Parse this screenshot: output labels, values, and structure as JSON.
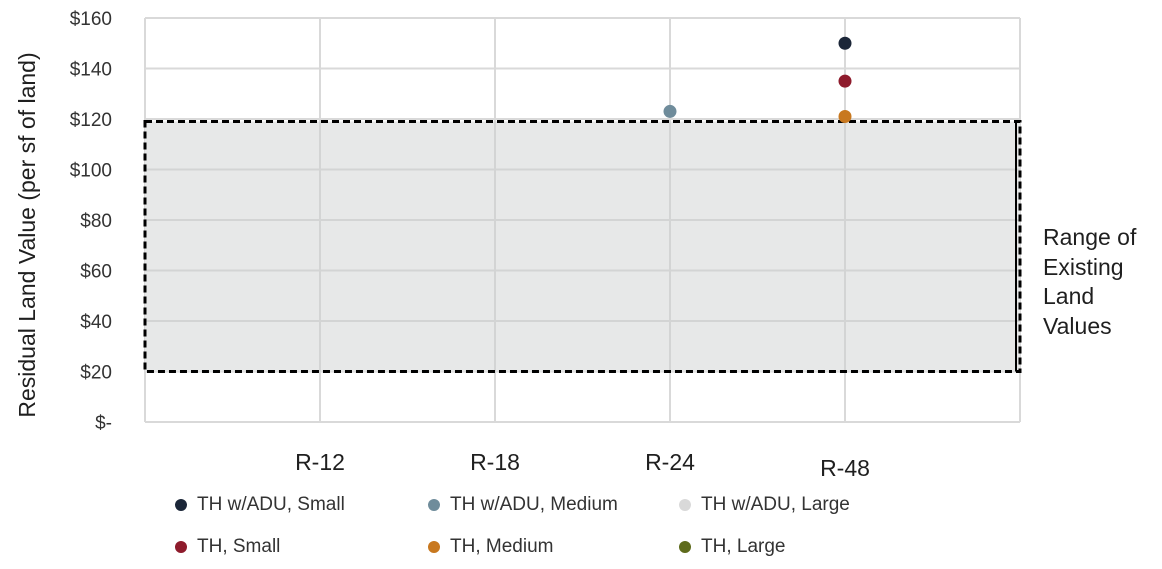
{
  "chart_data": {
    "type": "scatter",
    "title": "",
    "xlabel": "",
    "ylabel": "Residual Land Value (per sf of land)",
    "categories": [
      "R-12",
      "R-18",
      "R-24",
      "R-48"
    ],
    "y_ticks": [
      "$-",
      "$20",
      "$40",
      "$60",
      "$80",
      "$100",
      "$120",
      "$140",
      "$160"
    ],
    "ylim": [
      0,
      160
    ],
    "grid": true,
    "legend_position": "bottom",
    "series": [
      {
        "name": "TH w/ADU, Small",
        "color": "#1b2638",
        "points": [
          {
            "x": "R-48",
            "y": 150
          }
        ]
      },
      {
        "name": "TH w/ADU, Medium",
        "color": "#6f8c9b",
        "points": [
          {
            "x": "R-24",
            "y": 123
          }
        ]
      },
      {
        "name": "TH w/ADU, Large",
        "color": "#d9d9d9",
        "points": []
      },
      {
        "name": "TH, Small",
        "color": "#8e1b2c",
        "points": [
          {
            "x": "R-48",
            "y": 135
          }
        ]
      },
      {
        "name": "TH, Medium",
        "color": "#c8781f",
        "points": [
          {
            "x": "R-48",
            "y": 121
          }
        ]
      },
      {
        "name": "TH, Large",
        "color": "#5e6b1c",
        "points": []
      }
    ],
    "range_band": {
      "label_lines": [
        "Range of",
        "Existing",
        "Land",
        "Values"
      ],
      "low": 20,
      "high": 119,
      "fill": "#e7e8e8"
    }
  }
}
